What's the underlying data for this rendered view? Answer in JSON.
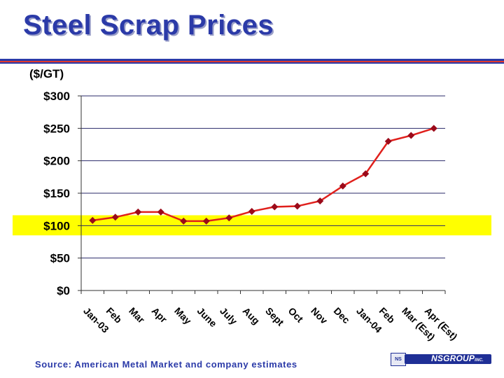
{
  "slide": {
    "title": "Steel Scrap Prices",
    "unit_label": "($/GT)",
    "source_text": "Source:  American Metal Market and company estimates",
    "logo_text": "NSGROUP",
    "logo_suffix": "INC.",
    "logo_emblem": "NS"
  },
  "colors": {
    "title": "#2b3aa8",
    "line": "#e0201c",
    "marker": "#9b0a1a",
    "highlight": "#ffff00",
    "grid": "#2a2a6a"
  },
  "chart_data": {
    "type": "line",
    "title": "",
    "xlabel": "",
    "ylabel": "($/GT)",
    "ylim": [
      0,
      300
    ],
    "yticks": [
      0,
      50,
      100,
      150,
      200,
      250,
      300
    ],
    "ytick_labels": [
      "$0",
      "$50",
      "$100",
      "$150",
      "$200",
      "$250",
      "$300"
    ],
    "grid": true,
    "highlight_band": [
      85,
      116
    ],
    "categories": [
      "Jan-03",
      "Feb",
      "Mar",
      "Apr",
      "May",
      "June",
      "July",
      "Aug",
      "Sept",
      "Oct",
      "Nov",
      "Dec",
      "Jan-04",
      "Feb",
      "Mar (Est)",
      "Apr (Est)"
    ],
    "series": [
      {
        "values": [
          108,
          113,
          121,
          121,
          107,
          107,
          112,
          122,
          129,
          130,
          138,
          161,
          180,
          230,
          239,
          250
        ]
      }
    ]
  }
}
